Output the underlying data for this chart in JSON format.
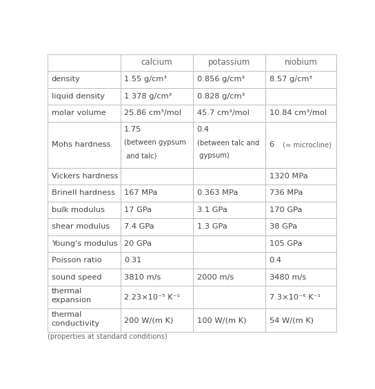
{
  "headers": [
    "",
    "calcium",
    "potassium",
    "niobium"
  ],
  "rows": [
    {
      "property": "density",
      "calcium": "1.55 g/cm³",
      "potassium": "0.856 g/cm³",
      "niobium": "8.57 g/cm³"
    },
    {
      "property": "liquid density",
      "calcium": "1.378 g/cm³",
      "potassium": "0.828 g/cm³",
      "niobium": ""
    },
    {
      "property": "molar volume",
      "calcium": "25.86 cm³/mol",
      "potassium": "45.7 cm³/mol",
      "niobium": "10.84 cm³/mol"
    },
    {
      "property": "Mohs hardness",
      "calcium_lines": [
        "1.75",
        "(between gypsum",
        " and talc)"
      ],
      "potassium_lines": [
        "0.4",
        "(between talc and",
        " gypsum)"
      ],
      "niobium_main": "6",
      "niobium_sub": " (≈ microcline)",
      "calcium": "",
      "potassium": "",
      "niobium": ""
    },
    {
      "property": "Vickers hardness",
      "calcium": "",
      "potassium": "",
      "niobium": "1320 MPa"
    },
    {
      "property": "Brinell hardness",
      "calcium": "167 MPa",
      "potassium": "0.363 MPa",
      "niobium": "736 MPa"
    },
    {
      "property": "bulk modulus",
      "calcium": "17 GPa",
      "potassium": "3.1 GPa",
      "niobium": "170 GPa"
    },
    {
      "property": "shear modulus",
      "calcium": "7.4 GPa",
      "potassium": "1.3 GPa",
      "niobium": "38 GPa"
    },
    {
      "property": "Young's modulus",
      "calcium": "20 GPa",
      "potassium": "",
      "niobium": "105 GPa"
    },
    {
      "property": "Poisson ratio",
      "calcium": "0.31",
      "potassium": "",
      "niobium": "0.4"
    },
    {
      "property": "sound speed",
      "calcium": "3810 m/s",
      "potassium": "2000 m/s",
      "niobium": "3480 m/s"
    },
    {
      "property": "thermal\nexpansion",
      "calcium": "2.23×10⁻⁵ K⁻¹",
      "potassium": "",
      "niobium": "7.3×10⁻⁶ K⁻¹"
    },
    {
      "property": "thermal\nconductivity",
      "calcium": "200 W/(m K)",
      "potassium": "100 W/(m K)",
      "niobium": "54 W/(m K)"
    }
  ],
  "footer": "(properties at standard conditions)",
  "background": "#ffffff",
  "line_color": "#bbbbbb",
  "text_color": "#444444",
  "sub_text_color": "#666666",
  "header_color": "#666666"
}
